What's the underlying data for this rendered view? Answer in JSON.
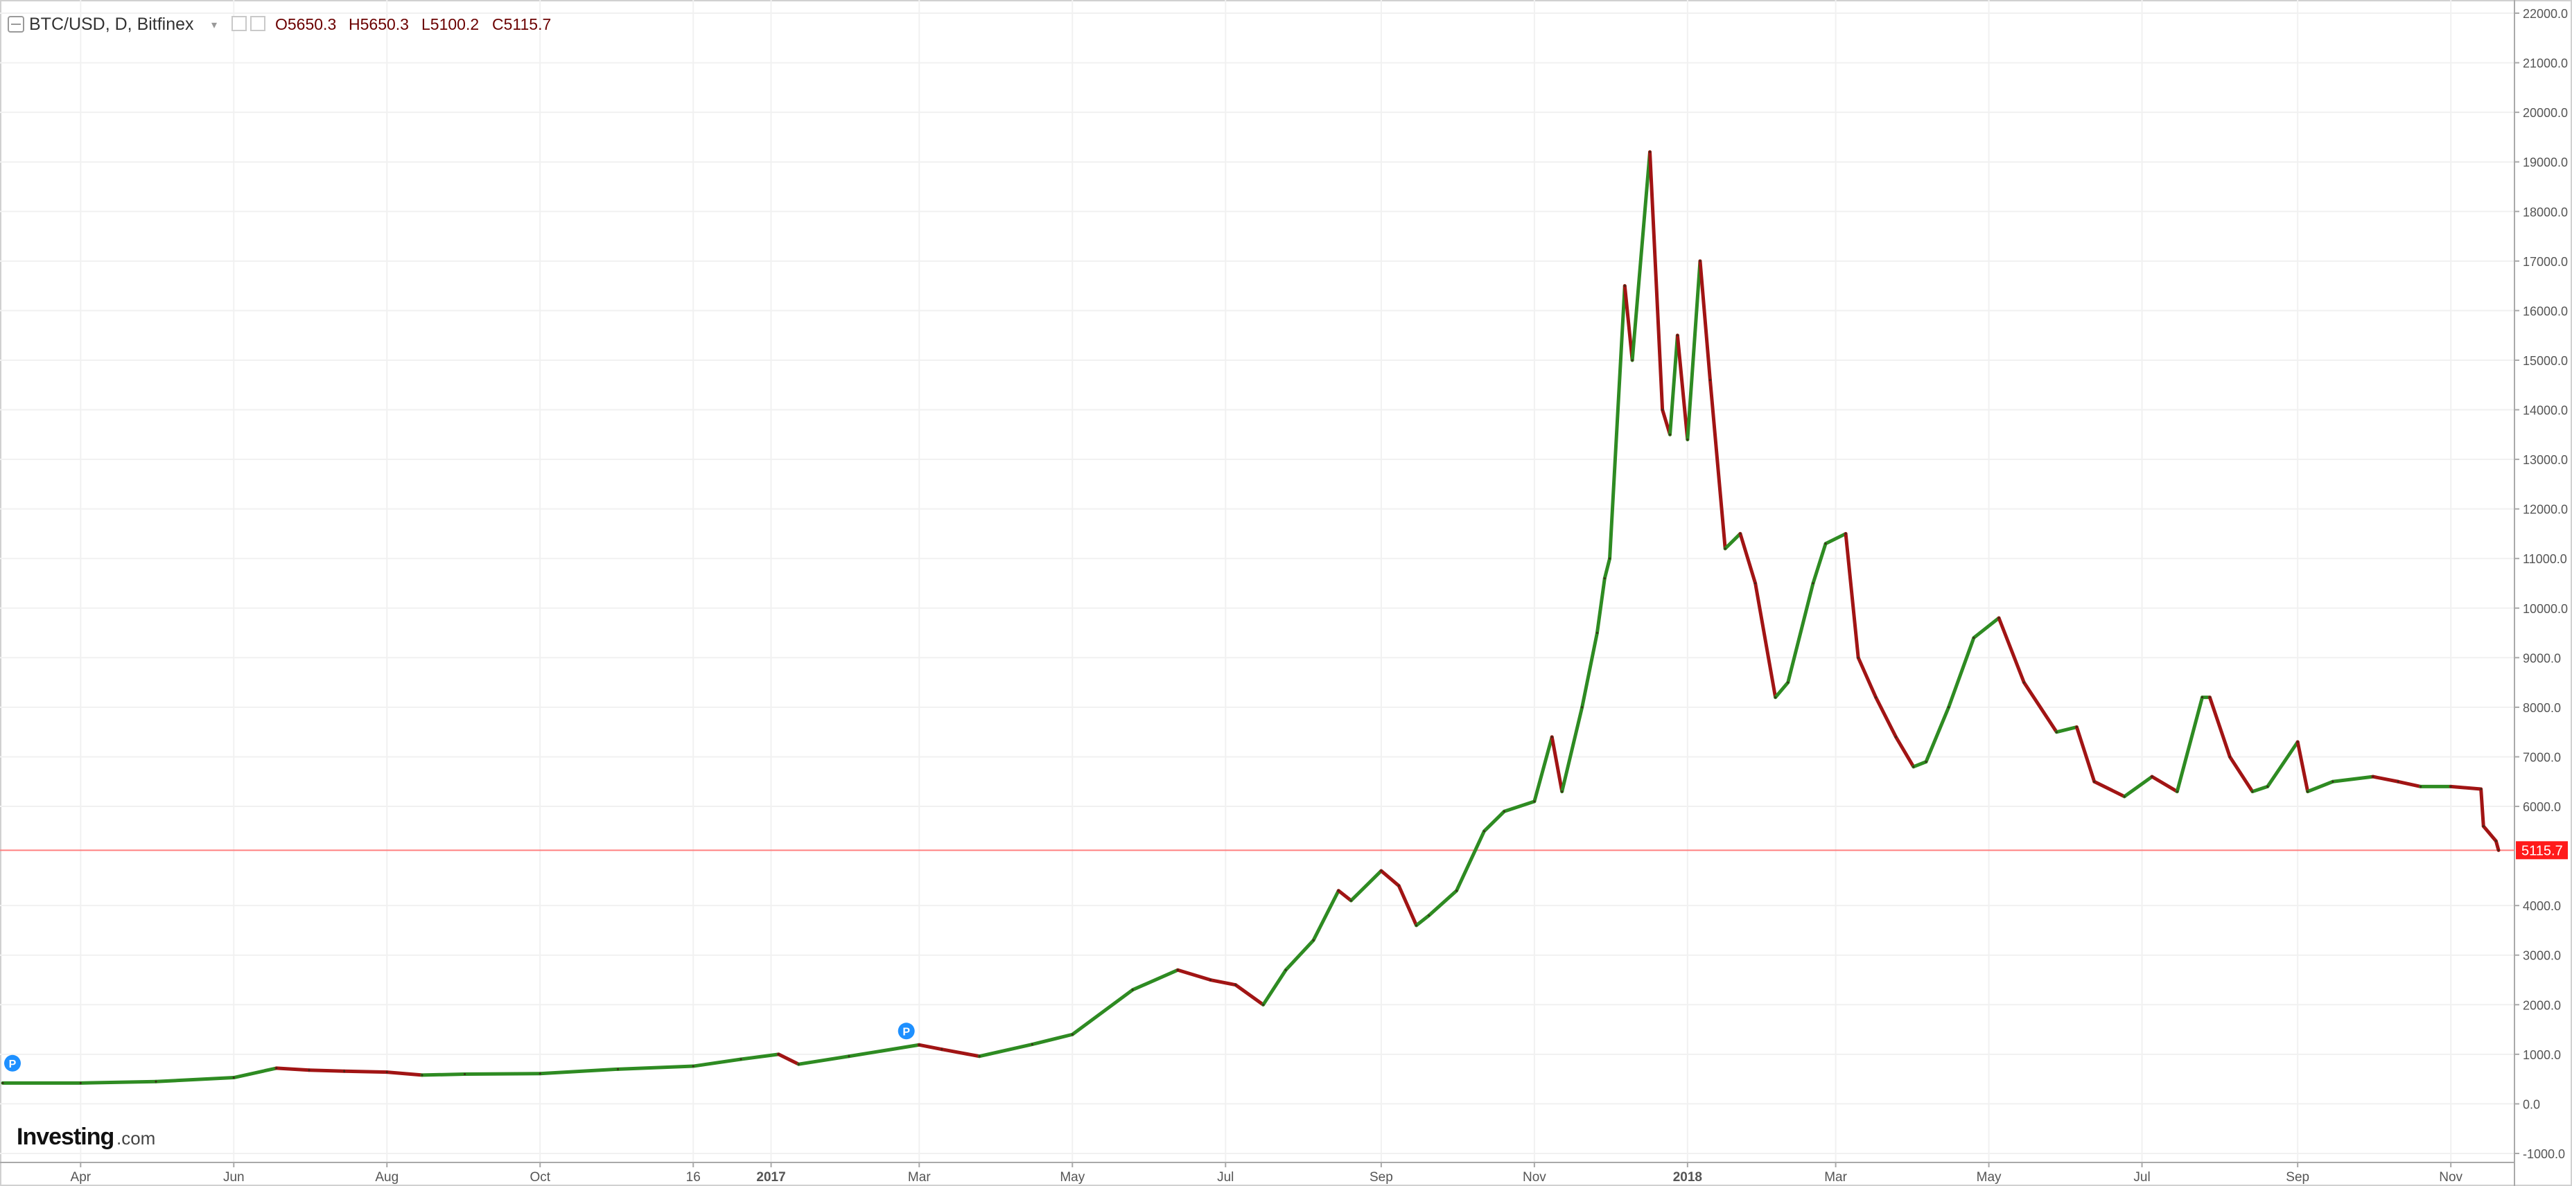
{
  "header": {
    "symbol": "BTC/USD, D, Bitfinex",
    "open": "O5650.3",
    "high": "H5650.3",
    "low": "L5100.2",
    "close": "C5115.7"
  },
  "logo": {
    "brand": "Investing",
    "suffix": ".com"
  },
  "price_marker": {
    "label": "5115.7",
    "value": 5115.7
  },
  "markers": [
    {
      "label": "P",
      "x": "2016-03-01",
      "y": 400
    },
    {
      "label": "P",
      "x": "2017-02-20",
      "y": 1050
    }
  ],
  "chart_data": {
    "type": "line",
    "title": "BTC/USD, D, Bitfinex",
    "xlabel": "",
    "ylabel": "",
    "x_range": [
      "2016-03-01",
      "2018-11-20"
    ],
    "ylim": [
      -1000,
      22000
    ],
    "grid": true,
    "y_axis_position": "right",
    "x_ticks": [
      {
        "date": "2016-04-01",
        "label": "Apr"
      },
      {
        "date": "2016-06-01",
        "label": "Jun"
      },
      {
        "date": "2016-08-01",
        "label": "Aug"
      },
      {
        "date": "2016-10-01",
        "label": "Oct"
      },
      {
        "date": "2016-12-01",
        "label": "16"
      },
      {
        "date": "2017-01-01",
        "label": "2017"
      },
      {
        "date": "2017-03-01",
        "label": "Mar"
      },
      {
        "date": "2017-05-01",
        "label": "May"
      },
      {
        "date": "2017-07-01",
        "label": "Jul"
      },
      {
        "date": "2017-09-01",
        "label": "Sep"
      },
      {
        "date": "2017-11-01",
        "label": "Nov"
      },
      {
        "date": "2018-01-01",
        "label": "2018"
      },
      {
        "date": "2018-03-01",
        "label": "Mar"
      },
      {
        "date": "2018-05-01",
        "label": "May"
      },
      {
        "date": "2018-07-01",
        "label": "Jul"
      },
      {
        "date": "2018-09-01",
        "label": "Sep"
      },
      {
        "date": "2018-11-01",
        "label": "Nov"
      }
    ],
    "y_ticks": [
      {
        "value": 22000,
        "label": "22000.0"
      },
      {
        "value": 21000,
        "label": "21000.0"
      },
      {
        "value": 20000,
        "label": "20000.0"
      },
      {
        "value": 19000,
        "label": "19000.0"
      },
      {
        "value": 18000,
        "label": "18000.0"
      },
      {
        "value": 17000,
        "label": "17000.0"
      },
      {
        "value": 16000,
        "label": "16000.0"
      },
      {
        "value": 15000,
        "label": "15000.0"
      },
      {
        "value": 14000,
        "label": "14000.0"
      },
      {
        "value": 13000,
        "label": "13000.0"
      },
      {
        "value": 12000,
        "label": "12000.0"
      },
      {
        "value": 11000,
        "label": "11000.0"
      },
      {
        "value": 10000,
        "label": "10000.0"
      },
      {
        "value": 9000,
        "label": "9000.0"
      },
      {
        "value": 8000,
        "label": "8000.0"
      },
      {
        "value": 7000,
        "label": "7000.0"
      },
      {
        "value": 6000,
        "label": "6000.0"
      },
      {
        "value": 4000,
        "label": "4000.0"
      },
      {
        "value": 3000,
        "label": "3000.0"
      },
      {
        "value": 2000,
        "label": "2000.0"
      },
      {
        "value": 1000,
        "label": "1000.0"
      },
      {
        "value": 0,
        "label": "0.0"
      },
      {
        "value": -1000,
        "label": "-1000.0"
      }
    ],
    "series": [
      {
        "x": [
          "2016-03-01",
          "2016-04-01",
          "2016-05-01",
          "2016-06-01",
          "2016-06-18",
          "2016-07-01",
          "2016-07-15",
          "2016-08-01",
          "2016-08-15",
          "2016-09-01",
          "2016-10-01",
          "2016-11-01",
          "2016-12-01",
          "2016-12-20",
          "2017-01-04",
          "2017-01-12",
          "2017-02-01",
          "2017-03-01",
          "2017-03-10",
          "2017-03-25",
          "2017-04-15",
          "2017-05-01",
          "2017-05-25",
          "2017-06-12",
          "2017-06-25",
          "2017-07-05",
          "2017-07-16",
          "2017-07-25",
          "2017-08-05",
          "2017-08-15",
          "2017-08-20",
          "2017-09-01",
          "2017-09-08",
          "2017-09-15",
          "2017-09-20",
          "2017-10-01",
          "2017-10-12",
          "2017-10-20",
          "2017-11-01",
          "2017-11-08",
          "2017-11-12",
          "2017-11-20",
          "2017-11-26",
          "2017-11-29",
          "2017-12-01",
          "2017-12-07",
          "2017-12-10",
          "2017-12-17",
          "2017-12-22",
          "2017-12-25",
          "2017-12-28",
          "2018-01-01",
          "2018-01-06",
          "2018-01-10",
          "2018-01-16",
          "2018-01-22",
          "2018-01-28",
          "2018-02-05",
          "2018-02-10",
          "2018-02-20",
          "2018-02-25",
          "2018-03-05",
          "2018-03-10",
          "2018-03-17",
          "2018-03-25",
          "2018-04-01",
          "2018-04-06",
          "2018-04-15",
          "2018-04-25",
          "2018-05-05",
          "2018-05-15",
          "2018-05-28",
          "2018-06-05",
          "2018-06-12",
          "2018-06-24",
          "2018-07-05",
          "2018-07-15",
          "2018-07-25",
          "2018-07-28",
          "2018-08-05",
          "2018-08-14",
          "2018-08-20",
          "2018-09-01",
          "2018-09-05",
          "2018-09-15",
          "2018-10-01",
          "2018-10-11",
          "2018-10-20",
          "2018-11-01",
          "2018-11-13",
          "2018-11-14",
          "2018-11-19",
          "2018-11-20"
        ],
        "y": [
          420,
          420,
          450,
          530,
          720,
          680,
          660,
          640,
          580,
          600,
          610,
          700,
          760,
          900,
          1000,
          800,
          960,
          1190,
          1100,
          960,
          1200,
          1400,
          2300,
          2700,
          2500,
          2400,
          2000,
          2700,
          3300,
          4300,
          4100,
          4700,
          4400,
          3600,
          3800,
          4300,
          5500,
          5900,
          6100,
          7400,
          6300,
          8000,
          9500,
          10600,
          11000,
          16500,
          15000,
          19200,
          14000,
          13500,
          15500,
          13400,
          17000,
          14600,
          11200,
          11500,
          10500,
          8200,
          8500,
          10500,
          11300,
          11500,
          9000,
          8200,
          7400,
          6800,
          6900,
          8000,
          9400,
          9800,
          8500,
          7500,
          7600,
          6500,
          6200,
          6600,
          6300,
          8200,
          8200,
          7000,
          6300,
          6400,
          7300,
          6300,
          6500,
          6600,
          6500,
          6400,
          6400,
          6350,
          5600,
          5300,
          5115.7
        ]
      }
    ]
  }
}
